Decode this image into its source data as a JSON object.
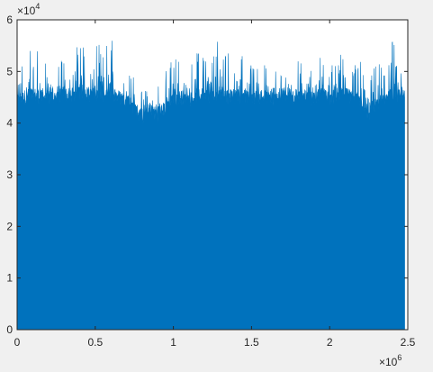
{
  "chart_data": {
    "type": "area",
    "title": "",
    "xlabel": "",
    "ylabel": "",
    "xlim": [
      0,
      2500000
    ],
    "ylim": [
      0,
      60000
    ],
    "x_ticks": [
      0,
      0.5,
      1,
      1.5,
      2,
      2.5
    ],
    "x_tick_labels": [
      "0",
      "0.5",
      "1",
      "1.5",
      "2",
      "2.5"
    ],
    "y_ticks": [
      0,
      1,
      2,
      3,
      4,
      5,
      6
    ],
    "y_tick_labels": [
      "0",
      "1",
      "2",
      "3",
      "4",
      "5",
      "6"
    ],
    "x_exponent_base": "×10",
    "x_exponent_power": "6",
    "y_exponent_base": "×10",
    "y_exponent_power": "4",
    "grid": false,
    "series_color": "#0072BD",
    "series": [
      {
        "x": [
          0,
          50000,
          100000,
          150000,
          200000,
          250000,
          300000,
          350000,
          400000,
          450000,
          500000,
          550000,
          600000,
          650000,
          700000,
          750000,
          800000,
          850000,
          900000,
          950000,
          1000000,
          1050000,
          1100000,
          1150000,
          1200000,
          1250000,
          1300000,
          1350000,
          1400000,
          1450000,
          1500000,
          1550000,
          1600000,
          1650000,
          1700000,
          1750000,
          1800000,
          1850000,
          1900000,
          1950000,
          2000000,
          2050000,
          2100000,
          2150000,
          2200000,
          2250000,
          2300000,
          2350000,
          2400000,
          2450000
        ],
        "peak_values": [
          53000,
          52500,
          58000,
          53000,
          51000,
          51000,
          53500,
          56000,
          57500,
          56000,
          56500,
          54000,
          58000,
          53000,
          52000,
          49000,
          46000,
          47500,
          49000,
          50000,
          53500,
          52500,
          50500,
          54000,
          55500,
          53000,
          58500,
          54000,
          52000,
          53500,
          51500,
          52000,
          51000,
          50500,
          51000,
          51000,
          52500,
          51500,
          50000,
          54000,
          51000,
          52000,
          55000,
          51000,
          53500,
          49000,
          51500,
          52000,
          56500,
          52000
        ],
        "base_values": [
          44000,
          45000,
          45500,
          45000,
          45000,
          44500,
          45500,
          45500,
          46000,
          45500,
          45500,
          45000,
          46000,
          45000,
          44500,
          43000,
          41000,
          42500,
          41500,
          43000,
          44500,
          45000,
          44500,
          45000,
          45500,
          45000,
          46000,
          45000,
          45000,
          45000,
          45000,
          45000,
          45000,
          44500,
          45000,
          45000,
          45000,
          45000,
          44500,
          45500,
          45000,
          45000,
          45500,
          44500,
          44500,
          41500,
          44000,
          44500,
          45500,
          45000
        ]
      }
    ]
  }
}
